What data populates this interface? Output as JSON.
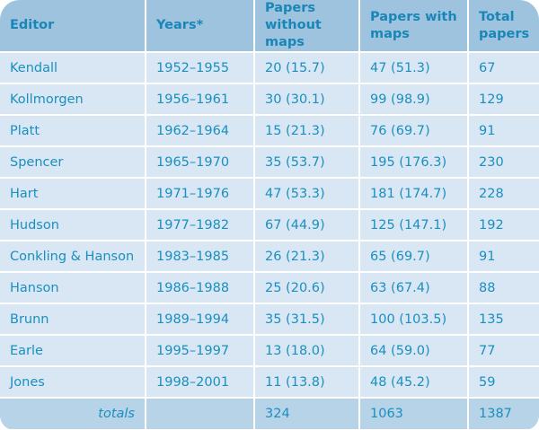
{
  "table": {
    "headers": [
      "Editor",
      "Years*",
      "Papers without maps",
      "Papers with maps",
      "Total papers"
    ],
    "rows": [
      {
        "editor": "Kendall",
        "years": "1952–1955",
        "without_maps": "20 (15.7)",
        "with_maps": "47 (51.3)",
        "total": "67"
      },
      {
        "editor": "Kollmorgen",
        "years": "1956–1961",
        "without_maps": "30 (30.1)",
        "with_maps": "99 (98.9)",
        "total": "129"
      },
      {
        "editor": "Platt",
        "years": "1962–1964",
        "without_maps": "15 (21.3)",
        "with_maps": "76 (69.7)",
        "total": "91"
      },
      {
        "editor": "Spencer",
        "years": "1965–1970",
        "without_maps": "35 (53.7)",
        "with_maps": "195 (176.3)",
        "total": "230"
      },
      {
        "editor": "Hart",
        "years": "1971–1976",
        "without_maps": "47 (53.3)",
        "with_maps": "181 (174.7)",
        "total": "228"
      },
      {
        "editor": "Hudson",
        "years": "1977–1982",
        "without_maps": "67 (44.9)",
        "with_maps": "125 (147.1)",
        "total": "192"
      },
      {
        "editor": "Conkling & Hanson",
        "years": "1983–1985",
        "without_maps": "26 (21.3)",
        "with_maps": "65 (69.7)",
        "total": "91"
      },
      {
        "editor": "Hanson",
        "years": "1986–1988",
        "without_maps": "25 (20.6)",
        "with_maps": "63 (67.4)",
        "total": "88"
      },
      {
        "editor": "Brunn",
        "years": "1989–1994",
        "without_maps": "35 (31.5)",
        "with_maps": "100 (103.5)",
        "total": "135"
      },
      {
        "editor": "Earle",
        "years": "1995–1997",
        "without_maps": "13 (18.0)",
        "with_maps": "64 (59.0)",
        "total": "77"
      },
      {
        "editor": "Jones",
        "years": "1998–2001",
        "without_maps": "11 (13.8)",
        "with_maps": "48 (45.2)",
        "total": "59"
      }
    ],
    "totals": {
      "label": "totals",
      "years": "",
      "without_maps": "324",
      "with_maps": "1063",
      "total": "1387"
    }
  },
  "colors": {
    "header_bg": "#9dc3de",
    "row_bg": "#d8e7f3",
    "totals_bg": "#b6d3e8",
    "text": "#1a8fc0"
  }
}
